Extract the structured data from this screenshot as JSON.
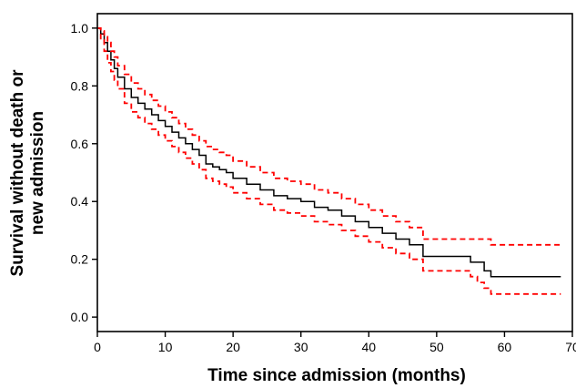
{
  "chart_data": {
    "type": "line",
    "title": "",
    "xlabel": "Time since admission (months)",
    "ylabel_lines": [
      "Survival without death or",
      "new admission"
    ],
    "xlim": [
      0,
      70
    ],
    "ylim": [
      -0.05,
      1.05
    ],
    "xticks": [
      0,
      10,
      20,
      30,
      40,
      50,
      60,
      70
    ],
    "xtick_labels": [
      "0",
      "10",
      "20",
      "30",
      "40",
      "50",
      "60",
      "70"
    ],
    "yticks": [
      0.0,
      0.2,
      0.4,
      0.6,
      0.8,
      1.0
    ],
    "ytick_labels": [
      "0.0",
      "0.2",
      "0.4",
      "0.6",
      "0.8",
      "1.0"
    ],
    "grid": false,
    "legend": "none",
    "series": [
      {
        "role": "estimate",
        "style": "solid",
        "color": "#000000",
        "step": true,
        "x": [
          0,
          0.5,
          1,
          1.5,
          2,
          2.5,
          3,
          4,
          5,
          6,
          7,
          8,
          9,
          10,
          11,
          12,
          13,
          14,
          15,
          16,
          17,
          18,
          19,
          20,
          22,
          24,
          26,
          28,
          30,
          32,
          34,
          36,
          38,
          40,
          42,
          44,
          46,
          48,
          50,
          52,
          54,
          55,
          56,
          57,
          58,
          60,
          62,
          64,
          66,
          68.3
        ],
        "y": [
          1.0,
          0.98,
          0.95,
          0.92,
          0.89,
          0.86,
          0.83,
          0.79,
          0.76,
          0.74,
          0.72,
          0.7,
          0.68,
          0.66,
          0.64,
          0.62,
          0.6,
          0.58,
          0.56,
          0.53,
          0.52,
          0.51,
          0.5,
          0.48,
          0.46,
          0.44,
          0.42,
          0.41,
          0.4,
          0.38,
          0.37,
          0.35,
          0.33,
          0.31,
          0.29,
          0.27,
          0.25,
          0.21,
          0.21,
          0.21,
          0.21,
          0.19,
          0.19,
          0.16,
          0.14,
          0.14,
          0.14,
          0.14,
          0.14,
          0.14
        ]
      },
      {
        "role": "upper-ci",
        "style": "dashed",
        "color": "#ff0000",
        "step": true,
        "x": [
          0,
          0.5,
          1,
          1.5,
          2,
          2.5,
          3,
          4,
          5,
          6,
          7,
          8,
          9,
          10,
          11,
          12,
          13,
          14,
          15,
          16,
          17,
          18,
          19,
          20,
          22,
          24,
          26,
          28,
          30,
          32,
          34,
          36,
          38,
          40,
          42,
          44,
          46,
          48,
          50,
          52,
          54,
          55,
          56,
          57,
          58,
          60,
          62,
          64,
          66,
          68.3
        ],
        "y": [
          1.0,
          0.99,
          0.97,
          0.95,
          0.92,
          0.9,
          0.87,
          0.84,
          0.81,
          0.79,
          0.77,
          0.75,
          0.73,
          0.71,
          0.69,
          0.67,
          0.65,
          0.63,
          0.61,
          0.59,
          0.58,
          0.57,
          0.56,
          0.54,
          0.52,
          0.5,
          0.48,
          0.47,
          0.46,
          0.44,
          0.43,
          0.41,
          0.39,
          0.37,
          0.35,
          0.33,
          0.31,
          0.27,
          0.27,
          0.27,
          0.27,
          0.27,
          0.27,
          0.27,
          0.25,
          0.25,
          0.25,
          0.25,
          0.25,
          0.25
        ]
      },
      {
        "role": "lower-ci",
        "style": "dashed",
        "color": "#ff0000",
        "step": true,
        "x": [
          0,
          0.5,
          1,
          1.5,
          2,
          2.5,
          3,
          4,
          5,
          6,
          7,
          8,
          9,
          10,
          11,
          12,
          13,
          14,
          15,
          16,
          17,
          18,
          19,
          20,
          22,
          24,
          26,
          28,
          30,
          32,
          34,
          36,
          38,
          40,
          42,
          44,
          46,
          48,
          50,
          52,
          54,
          55,
          56,
          57,
          58,
          60,
          62,
          64,
          66,
          68.3
        ],
        "y": [
          1.0,
          0.96,
          0.92,
          0.88,
          0.85,
          0.82,
          0.79,
          0.74,
          0.71,
          0.69,
          0.67,
          0.65,
          0.63,
          0.61,
          0.59,
          0.57,
          0.55,
          0.53,
          0.51,
          0.48,
          0.47,
          0.46,
          0.45,
          0.43,
          0.41,
          0.39,
          0.37,
          0.36,
          0.35,
          0.33,
          0.32,
          0.3,
          0.28,
          0.26,
          0.24,
          0.22,
          0.2,
          0.16,
          0.16,
          0.16,
          0.16,
          0.14,
          0.12,
          0.1,
          0.08,
          0.08,
          0.08,
          0.08,
          0.08,
          0.08
        ]
      }
    ]
  }
}
